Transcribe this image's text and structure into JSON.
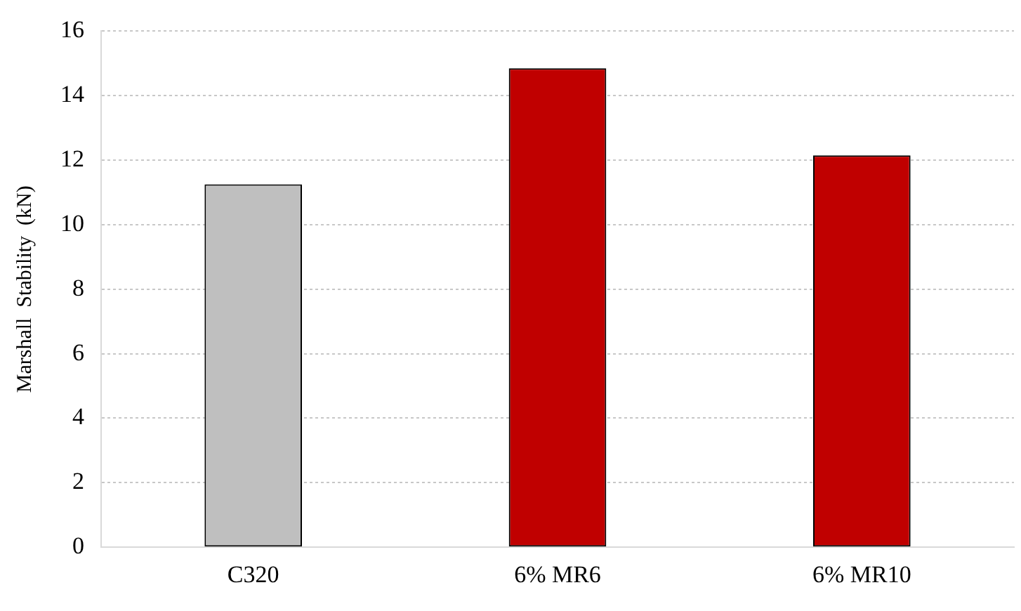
{
  "chart_data": {
    "type": "bar",
    "ylabel": "Marshall  Stability  (kN)",
    "categories": [
      "C320",
      "6% MR6",
      "6% MR10"
    ],
    "values": [
      11.25,
      14.85,
      12.15
    ],
    "colors": [
      "#bfbfbf",
      "#c00000",
      "#c00000"
    ],
    "ylim": [
      0,
      16
    ],
    "yticks": [
      0,
      2,
      4,
      6,
      8,
      10,
      12,
      14,
      16
    ],
    "grid": "y",
    "legend": false
  }
}
